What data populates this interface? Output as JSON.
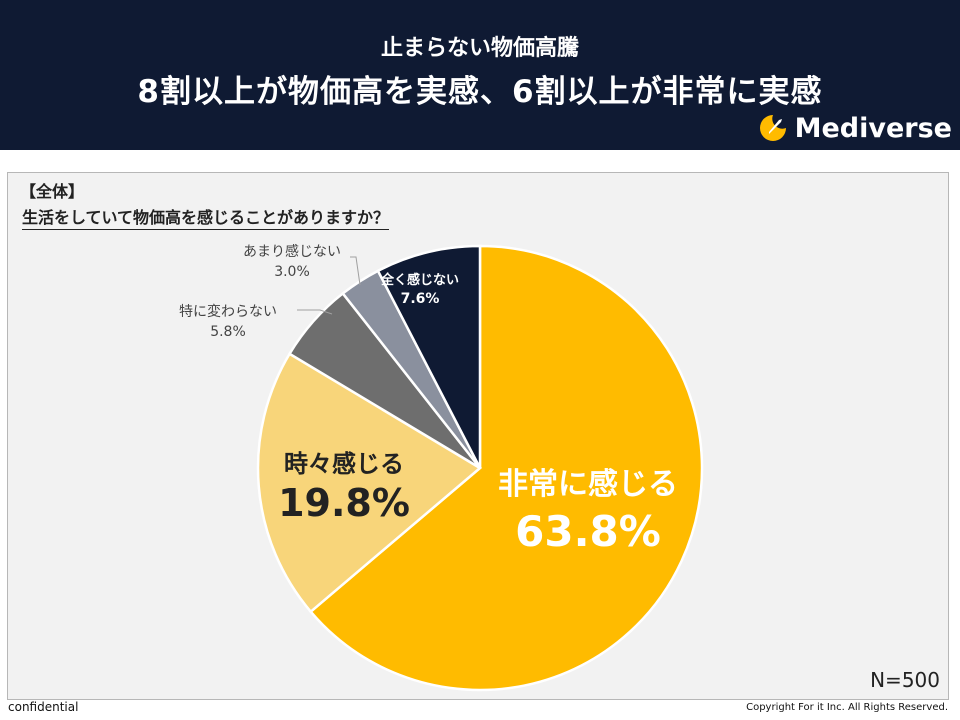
{
  "header": {
    "subtitle": "止まらない物価高騰",
    "title": "8割以上が物価高を実感、6割以上が非常に実感",
    "brand": "Mediverse"
  },
  "panel": {
    "segment": "【全体】",
    "question": "生活をしていて物価高を感じることがありますか？",
    "sample_size": "N=500"
  },
  "footer": {
    "left": "confidential",
    "right": "Copyright For it Inc. All Rights Reserved."
  },
  "colors": {
    "header_bg": "#0f1a33",
    "very_much": "#ffbb00",
    "sometimes": "#f8d57a",
    "no_change": "#6e6e6e",
    "not_much": "#8a909e",
    "not_at_all": "#0f1a33"
  },
  "chart_data": {
    "type": "pie",
    "title": "生活をしていて物価高を感じることがありますか？",
    "start": "12 o'clock",
    "direction": "clockwise",
    "slices": [
      {
        "key": "very_much",
        "label": "非常に感じる",
        "value": 63.8,
        "value_label": "63.8%"
      },
      {
        "key": "sometimes",
        "label": "時々感じる",
        "value": 19.8,
        "value_label": "19.8%"
      },
      {
        "key": "no_change",
        "label": "特に変わらない",
        "value": 5.8,
        "value_label": "5.8%"
      },
      {
        "key": "not_much",
        "label": "あまり感じない",
        "value": 3.0,
        "value_label": "3.0%"
      },
      {
        "key": "not_at_all",
        "label": "全く感じない",
        "value": 7.6,
        "value_label": "7.6%"
      }
    ]
  }
}
